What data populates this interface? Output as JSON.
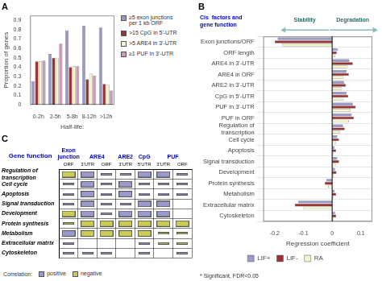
{
  "chart_data": [
    {
      "type": "bar",
      "title": "A",
      "categories": [
        "0-2h",
        "2-5h",
        "5-8h",
        "8-12h",
        ">12h"
      ],
      "series": [
        {
          "name": "≥5 exon junctions\nper 1 kb ORF",
          "color": "#9999cc",
          "values": [
            0.25,
            0.54,
            0.79,
            0.84,
            0.82
          ]
        },
        {
          "name": ">15 CpG in 5'-UTR",
          "color": "#993333",
          "values": [
            0.46,
            0.5,
            0.4,
            0.27,
            0.22
          ]
        },
        {
          "name": ">5 ARE4 in 3'-UTR",
          "color": "#f5f5cc",
          "values": [
            0.46,
            0.5,
            0.41,
            0.33,
            0.21
          ]
        },
        {
          "name": "≥1 PUF in 3'-UTR",
          "color": "#cc99bb",
          "values": [
            0.47,
            0.65,
            0.41,
            0.31,
            0.15
          ]
        }
      ],
      "x_label": "Half-life:",
      "y_label": "Proportion of genes",
      "ylim": [
        0,
        0.95
      ],
      "yticks": [
        0,
        0.1,
        0.2,
        0.3,
        0.4,
        0.5,
        0.6,
        0.7,
        0.8,
        0.9
      ],
      "grid": false,
      "legend": "right"
    },
    {
      "type": "bar",
      "orientation": "horizontal",
      "title": "B",
      "subtitle": "Cis  factors and\ngene function",
      "categories": [
        "Exon junctions/ORF",
        "ORF length",
        "ARE4 in 3'-UTR",
        "ARE4 in ORF",
        "ARE2 in 3'-UTR",
        "CpG in 5'-UTR",
        "PUF in 3'-UTR",
        "PUF in ORF",
        "Regulation of\ntranscription",
        "Cell cycle",
        "Apoptosis",
        "Signal transduction",
        "Development",
        "Protein synthesis",
        "Metabolism",
        "Extracellular matrix",
        "Cytoskeleton"
      ],
      "series": [
        {
          "name": "LIF+",
          "color": "#9999cc",
          "values": [
            -0.19,
            0.02,
            0.06,
            0.05,
            0.042,
            0.05,
            0.072,
            0.068,
            0.038,
            0.018,
            0.008,
            0.018,
            0.01,
            -0.02,
            0.008,
            -0.118,
            0.01
          ]
        },
        {
          "name": "LIF-",
          "color": "#993333",
          "values": [
            -0.2,
            0.016,
            0.072,
            0.058,
            0.048,
            0.056,
            0.082,
            0.076,
            0.044,
            0.024,
            0.014,
            0.024,
            0.015,
            -0.026,
            0.014,
            -0.13,
            0.014
          ]
        },
        {
          "name": "RA",
          "color": "#f5f5cc",
          "values": [
            -0.175,
            0.01,
            0.054,
            0.04,
            0.034,
            0.04,
            0.064,
            0.058,
            0.028,
            0.014,
            0.004,
            0.012,
            0.005,
            -0.014,
            0.004,
            -0.1,
            0.004
          ]
        }
      ],
      "x_label": "Regression coefficient",
      "xlim": [
        -0.24,
        0.14
      ],
      "xticks": [
        -0.2,
        -0.1,
        0,
        0.1
      ],
      "grid": "y",
      "legend": "bottom",
      "annotations": [
        "Stability",
        "Degradation",
        "* Significant, FDR<0.05"
      ]
    },
    {
      "type": "matrix",
      "title": "C",
      "categories": [
        "ORF",
        "3'UTR",
        "ORF",
        "3'UTR",
        "5'UTR",
        "3'UTR",
        "ORF"
      ],
      "column_groups": [
        {
          "label": "Exon\njunction",
          "span": 1
        },
        {
          "label": "ARE4",
          "span": 2
        },
        {
          "label": "ARE2",
          "span": 1
        },
        {
          "label": "CpG",
          "span": 1
        },
        {
          "label": "PUF",
          "span": 2
        }
      ],
      "row_header": "Gene function",
      "rows": [
        "Regulation of\ntranscription",
        "Cell cycle",
        "Apoptosis",
        "Signal transduction",
        "Development",
        "Protein synthesis",
        "Metabolism",
        "Extracellular matrix",
        "Cytoskeleton"
      ],
      "legend_title": "Correlation:",
      "legend": "bottom",
      "series": [
        {
          "name": "positive",
          "color": "#9999cc",
          "marker": "square",
          "cells": [
            [
              0,
              1
            ],
            [
              0,
              4
            ],
            [
              0,
              5
            ],
            [
              1,
              1
            ],
            [
              1,
              3
            ],
            [
              2,
              1
            ],
            [
              2,
              3
            ],
            [
              3,
              1
            ],
            [
              3,
              4
            ],
            [
              3,
              5
            ],
            [
              4,
              1
            ],
            [
              4,
              3
            ],
            [
              4,
              4
            ],
            [
              4,
              5
            ],
            [
              6,
              0
            ]
          ]
        },
        {
          "name": "negative",
          "color": "#cccc55",
          "marker": "square",
          "cells": [
            [
              0,
              0
            ],
            [
              4,
              0
            ],
            [
              5,
              1
            ],
            [
              5,
              2
            ],
            [
              5,
              3
            ],
            [
              5,
              4
            ],
            [
              5,
              5
            ],
            [
              5,
              6
            ],
            [
              6,
              1
            ],
            [
              6,
              2
            ],
            [
              6,
              3
            ],
            [
              6,
              4
            ]
          ]
        },
        {
          "color": "#9999cc",
          "marker": "bar",
          "cells": [
            [
              0,
              2
            ],
            [
              0,
              3
            ],
            [
              0,
              6
            ],
            [
              1,
              0
            ],
            [
              1,
              2
            ],
            [
              1,
              4
            ],
            [
              1,
              5
            ],
            [
              1,
              6
            ],
            [
              2,
              0
            ],
            [
              2,
              2
            ],
            [
              2,
              4
            ],
            [
              2,
              5
            ],
            [
              2,
              6
            ],
            [
              3,
              0
            ],
            [
              3,
              2
            ],
            [
              3,
              3
            ],
            [
              4,
              2
            ],
            [
              7,
              0
            ],
            [
              7,
              4
            ],
            [
              8,
              0
            ],
            [
              8,
              1
            ],
            [
              8,
              2
            ],
            [
              8,
              4
            ],
            [
              8,
              6
            ]
          ]
        },
        {
          "color": "#cccc55",
          "marker": "bar",
          "cells": [
            [
              5,
              0
            ],
            [
              6,
              5
            ],
            [
              6,
              6
            ],
            [
              7,
              5
            ],
            [
              7,
              6
            ]
          ]
        }
      ]
    }
  ]
}
